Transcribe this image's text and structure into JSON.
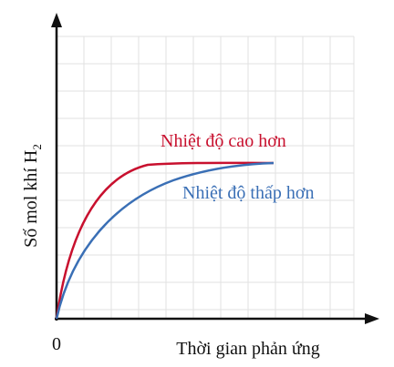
{
  "axes": {
    "y_label": "Số mol khí H",
    "y_label_subscript": "2",
    "x_label": "Thời gian phản ứng",
    "origin": "0"
  },
  "curves": [
    {
      "label": "Nhiệt độ cao hơn"
    },
    {
      "label": "Nhiệt độ thấp hơn"
    }
  ]
}
